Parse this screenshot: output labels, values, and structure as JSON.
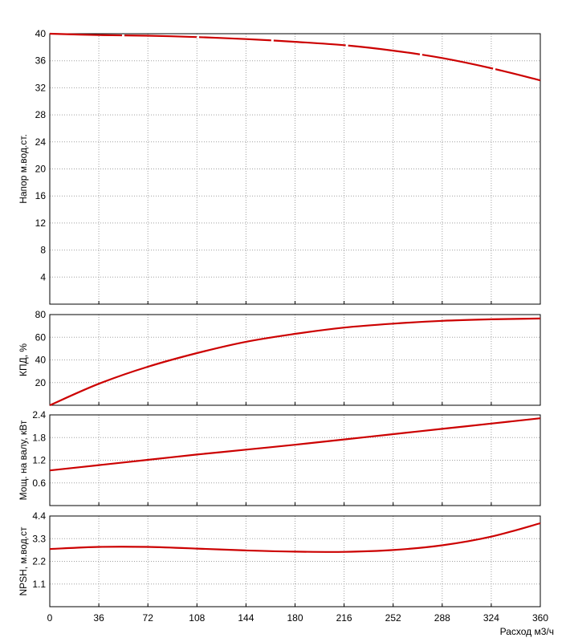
{
  "chart_data": [
    {
      "type": "line",
      "ylabel": "Напор м.вод.ст.",
      "xlim": [
        0,
        360
      ],
      "ylim": [
        0,
        40
      ],
      "yticks": [
        4,
        8,
        12,
        16,
        20,
        24,
        28,
        32,
        36,
        40
      ],
      "grid": true,
      "series": [
        {
          "x": [
            0,
            36,
            72,
            108,
            144,
            180,
            216,
            252,
            288,
            324,
            360
          ],
          "y": [
            40,
            39.8,
            39.7,
            39.5,
            39.2,
            38.8,
            38.3,
            37.5,
            36.4,
            34.9,
            33.1
          ],
          "color": "#cc0000",
          "style": "long-dash"
        }
      ]
    },
    {
      "type": "line",
      "ylabel": "КПД, %",
      "xlim": [
        0,
        360
      ],
      "ylim": [
        0,
        80
      ],
      "yticks": [
        20,
        40,
        60,
        80
      ],
      "grid": true,
      "series": [
        {
          "x": [
            0,
            36,
            72,
            108,
            144,
            180,
            216,
            252,
            288,
            324,
            360
          ],
          "y": [
            0,
            19,
            34,
            46,
            56,
            63,
            68.5,
            72,
            74.5,
            75.8,
            76.5
          ],
          "color": "#cc0000"
        }
      ]
    },
    {
      "type": "line",
      "ylabel": "Мощ. на валу, кВт",
      "xlim": [
        0,
        360
      ],
      "ylim": [
        0,
        2.4
      ],
      "yticks": [
        0.6,
        1.2,
        1.8,
        2.4
      ],
      "grid": true,
      "series": [
        {
          "x": [
            0,
            36,
            72,
            108,
            144,
            180,
            216,
            252,
            288,
            324,
            360
          ],
          "y": [
            0.93,
            1.07,
            1.21,
            1.35,
            1.48,
            1.61,
            1.75,
            1.89,
            2.03,
            2.17,
            2.31
          ],
          "color": "#cc0000"
        }
      ]
    },
    {
      "type": "line",
      "ylabel": "NPSH, м.вод.ст",
      "xlim": [
        0,
        360
      ],
      "ylim": [
        0,
        4.4
      ],
      "yticks": [
        1.1,
        2.2,
        3.3,
        4.4
      ],
      "grid": true,
      "series": [
        {
          "x": [
            0,
            36,
            72,
            108,
            144,
            180,
            216,
            252,
            288,
            324,
            360
          ],
          "y": [
            2.8,
            2.9,
            2.9,
            2.82,
            2.73,
            2.67,
            2.66,
            2.75,
            2.98,
            3.4,
            4.05
          ],
          "color": "#cc0000"
        }
      ]
    }
  ],
  "xticks": [
    0,
    36,
    72,
    108,
    144,
    180,
    216,
    252,
    288,
    324,
    360
  ],
  "xlabel": "Расход м3/ч"
}
